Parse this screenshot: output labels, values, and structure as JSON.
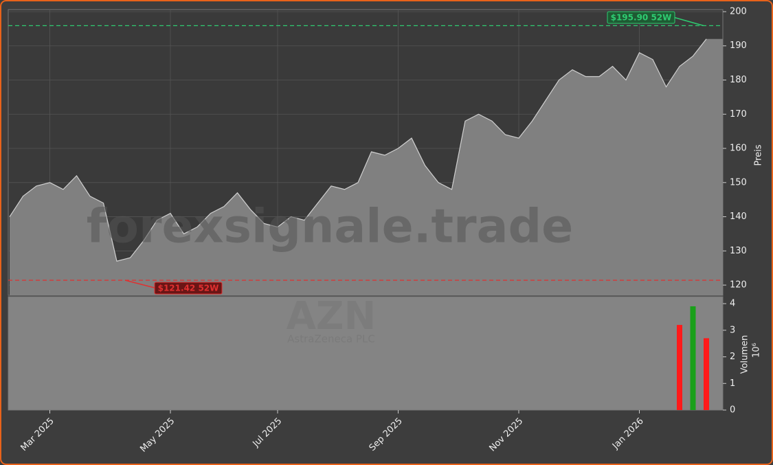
{
  "chart_data": {
    "type": "line",
    "watermark": "forexsignale.trade",
    "symbol": "AZN",
    "company": "AstraZeneca PLC",
    "ylabel": "Preis",
    "categories": [
      null,
      null,
      null,
      "Mar 2025",
      null,
      null,
      null,
      null,
      null,
      null,
      null,
      null,
      "May 2025",
      null,
      null,
      null,
      null,
      null,
      null,
      null,
      "Jul 2025",
      null,
      null,
      null,
      null,
      null,
      null,
      null,
      null,
      "Sep 2025",
      null,
      null,
      null,
      null,
      null,
      null,
      null,
      null,
      "Nov 2025",
      null,
      null,
      null,
      null,
      null,
      null,
      null,
      null,
      "Jan 2026",
      null,
      null,
      null,
      null,
      null
    ],
    "values": [
      140,
      146,
      149,
      150,
      148,
      152,
      146,
      144,
      127,
      128,
      133,
      139,
      141,
      135,
      137,
      141,
      143,
      147,
      142,
      138,
      137,
      140,
      139,
      144,
      149,
      148,
      150,
      159,
      158,
      160,
      163,
      155,
      150,
      148,
      168,
      170,
      168,
      164,
      163,
      168,
      174,
      180,
      183,
      181,
      181,
      184,
      180,
      188,
      186,
      178,
      184,
      187,
      192
    ],
    "color": "#808080",
    "line_color": "#d0d0d0",
    "ylim": [
      117,
      200.6
    ],
    "yticks": [
      120,
      130,
      140,
      150,
      160,
      170,
      180,
      190,
      200
    ],
    "grid": true,
    "annotations": [
      {
        "text": "$195.90 52W",
        "value": 195.9,
        "color": "#2ecc71"
      },
      {
        "text": "$121.42 52W",
        "value": 121.42,
        "color": "#e03030"
      }
    ],
    "volume": {
      "ylabel": "Volumen",
      "scale_label": "10⁶",
      "values": [
        null,
        null,
        null,
        null,
        null,
        null,
        null,
        null,
        null,
        null,
        null,
        null,
        null,
        null,
        null,
        null,
        null,
        null,
        null,
        null,
        null,
        null,
        null,
        null,
        null,
        null,
        null,
        null,
        null,
        null,
        null,
        null,
        null,
        null,
        null,
        null,
        null,
        null,
        null,
        null,
        null,
        null,
        null,
        null,
        null,
        null,
        null,
        null,
        null,
        null,
        3.2,
        3.9,
        2.7
      ],
      "colors": [
        null,
        null,
        null,
        null,
        null,
        null,
        null,
        null,
        null,
        null,
        null,
        null,
        null,
        null,
        null,
        null,
        null,
        null,
        null,
        null,
        null,
        null,
        null,
        null,
        null,
        null,
        null,
        null,
        null,
        null,
        null,
        null,
        null,
        null,
        null,
        null,
        null,
        null,
        null,
        null,
        null,
        null,
        null,
        null,
        null,
        null,
        null,
        null,
        null,
        null,
        "#ff1a1a",
        "#1aa01a",
        "#ff1a1a"
      ],
      "ylim": [
        0,
        4.26
      ],
      "yticks": [
        0,
        1,
        2,
        3,
        4
      ]
    }
  }
}
